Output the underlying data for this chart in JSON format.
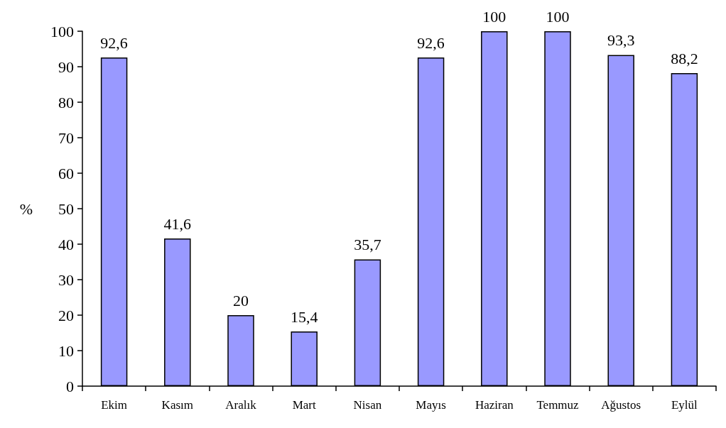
{
  "chart_data": {
    "type": "bar",
    "ylabel": "%",
    "categories": [
      "Ekim",
      "Kasım",
      "Aralık",
      "Mart",
      "Nisan",
      "Mayıs",
      "Haziran",
      "Temmuz",
      "Ağustos",
      "Eylül"
    ],
    "values": [
      92.6,
      41.6,
      20,
      15.4,
      35.7,
      92.6,
      100,
      100,
      93.3,
      88.2
    ],
    "value_labels": [
      "92,6",
      "41,6",
      "20",
      "15,4",
      "35,7",
      "92,6",
      "100",
      "100",
      "93,3",
      "88,2"
    ],
    "color": "#9999ff",
    "ylim": [
      0,
      100
    ],
    "yticks": [
      0,
      10,
      20,
      30,
      40,
      50,
      60,
      70,
      80,
      90,
      100
    ],
    "grid": false
  }
}
